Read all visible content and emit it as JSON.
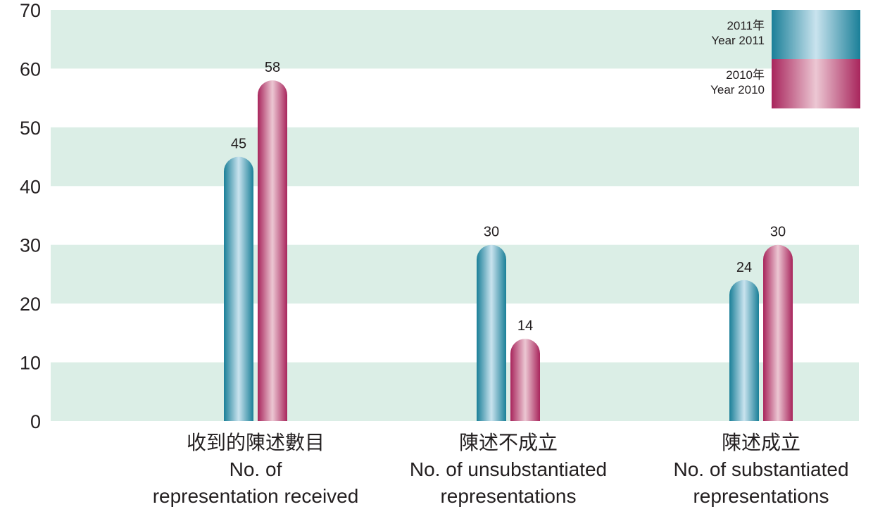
{
  "chart_data": {
    "type": "bar",
    "categories": [
      {
        "zh": "收到的陳述數目",
        "en_line1": "No. of",
        "en_line2": "representation received"
      },
      {
        "zh": "陳述不成立",
        "en_line1": "No. of unsubstantiated",
        "en_line2": "representations"
      },
      {
        "zh": "陳述成立",
        "en_line1": "No. of substantiated",
        "en_line2": "representations"
      }
    ],
    "series": [
      {
        "name_zh": "2011年",
        "name_en": "Year 2011",
        "values": [
          45,
          30,
          24
        ],
        "color_dark": "#1a7f98",
        "color_light": "#c9e3ee"
      },
      {
        "name_zh": "2010年",
        "name_en": "Year 2010",
        "values": [
          58,
          14,
          30
        ],
        "color_dark": "#a8255c",
        "color_light": "#ecc7d3"
      }
    ],
    "ylim": [
      0,
      70
    ],
    "yticks": [
      "0",
      "10",
      "20",
      "30",
      "40",
      "50",
      "60",
      "70"
    ],
    "band_color": "#dbeee6",
    "legend_position": "top-right"
  }
}
